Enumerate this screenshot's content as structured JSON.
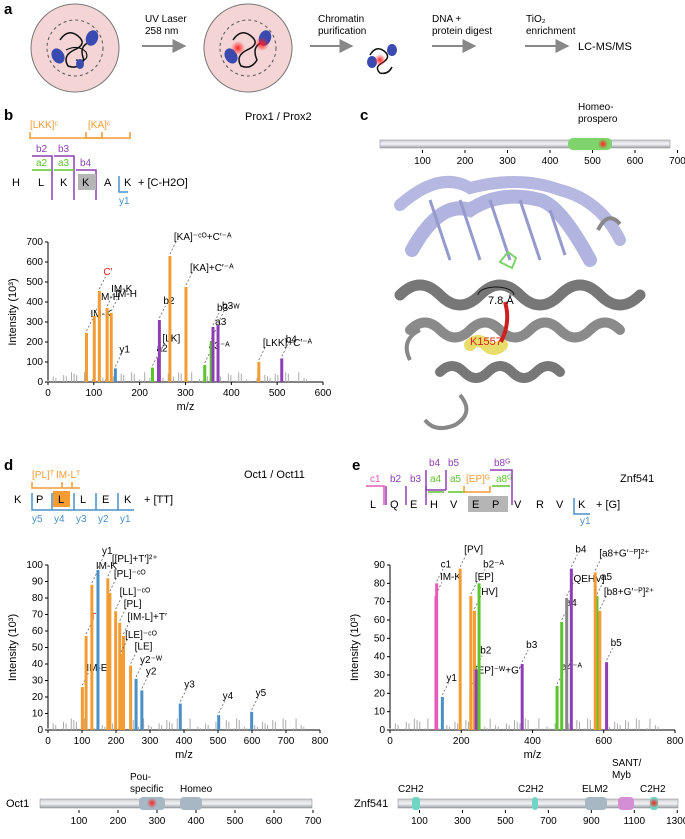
{
  "panel_labels": {
    "a": "a",
    "b": "b",
    "c": "c",
    "d": "d",
    "e": "e"
  },
  "workflow": {
    "steps": [
      "UV Laser\n258 nm",
      "Chromatin\npurification",
      "DNA +\nprotein digest",
      "TiO₂\nenrichment",
      "LC-MS/MS"
    ]
  },
  "colors": {
    "orange": "#f39c34",
    "purple": "#8e3fb5",
    "green": "#5cc42c",
    "blue": "#4a90c8",
    "pink": "#e65ab8",
    "red": "#e02020",
    "grey": "#888888",
    "cell": "#f4d4d4",
    "dna": "#a9acdc"
  },
  "panel_b": {
    "title": "Prox1 / Prox2",
    "sequence": [
      "H",
      "L",
      "K",
      "K",
      "A",
      "K"
    ],
    "mod": "+ [C-H2O]",
    "frag_labels": [
      "[LKK]ᶜ",
      "[KA]ᶜ",
      "b2",
      "b3",
      "a2",
      "a3",
      "b4",
      "y1"
    ]
  },
  "panel_c": {
    "domain_label": "Homeo-\nprospero",
    "distance": "7.8 Å",
    "residue": "K1557"
  },
  "panel_d": {
    "title": "Oct1 / Oct11",
    "sequence": [
      "K",
      "P",
      "L",
      "L",
      "E",
      "K"
    ],
    "mod": "+ [TT]",
    "top_labels": [
      "[PL]ᵀ",
      "IM-Lᵀ"
    ],
    "y_labels": [
      "y5",
      "y4",
      "y3",
      "y2",
      "y1"
    ],
    "protein": "Oct1",
    "domains": [
      "Pou-\nspecific",
      "Homeo"
    ]
  },
  "panel_e": {
    "title": "Znf541",
    "sequence": [
      "L",
      "Q",
      "E",
      "H",
      "V",
      "E",
      "P",
      "V",
      "R",
      "V",
      "K"
    ],
    "mod": "+ [G]",
    "frag_labels": [
      "c1",
      "b2",
      "b3",
      "b4",
      "b5",
      "a4",
      "a5",
      "[EP]ᴳ",
      "b8ᴳ",
      "a8ᴳ",
      "y1"
    ],
    "protein": "Znf541",
    "domains": [
      "C2H2",
      "C2H2",
      "ELM2",
      "SANT/\nMyb",
      "C2H2"
    ]
  },
  "chart_data": [
    {
      "type": "bar",
      "panel": "b",
      "xlabel": "m/z",
      "ylabel": "Intensity (10³)",
      "xlim": [
        0,
        600
      ],
      "ylim": [
        0,
        700
      ],
      "xticks": [
        0,
        100,
        200,
        300,
        400,
        500,
        600
      ],
      "yticks": [
        0,
        100,
        200,
        300,
        400,
        500,
        600,
        700
      ],
      "peaks": [
        {
          "x": 84,
          "y": 245,
          "color": "orange",
          "label": "IM-K"
        },
        {
          "x": 101,
          "y": 330,
          "color": "orange",
          "label": "IM-H"
        },
        {
          "x": 112,
          "y": 455,
          "color": "orange",
          "label": "C′"
        },
        {
          "x": 129,
          "y": 370,
          "color": "orange",
          "label": "IM-K"
        },
        {
          "x": 138,
          "y": 345,
          "color": "orange",
          "label": "IM-H"
        },
        {
          "x": 147,
          "y": 68,
          "color": "blue",
          "label": "y1"
        },
        {
          "x": 228,
          "y": 72,
          "color": "green",
          "label": "a2"
        },
        {
          "x": 241,
          "y": 122,
          "color": "purple",
          "label": "[LK]"
        },
        {
          "x": 243,
          "y": 310,
          "color": "purple",
          "label": "b2"
        },
        {
          "x": 266,
          "y": 630,
          "color": "orange",
          "label": "[KA]⁻ᶜᴼ+C′⁻ᴬ"
        },
        {
          "x": 301,
          "y": 475,
          "color": "orange",
          "label": "[KA]+C′⁻ᴬ"
        },
        {
          "x": 342,
          "y": 85,
          "color": "green",
          "label": "a3⁻ᴬ"
        },
        {
          "x": 356,
          "y": 205,
          "color": "green",
          "label": "a3"
        },
        {
          "x": 360,
          "y": 275,
          "color": "purple",
          "label": "b3⁻ᵂ"
        },
        {
          "x": 371,
          "y": 285,
          "color": "purple",
          "label": "b3"
        },
        {
          "x": 460,
          "y": 100,
          "color": "orange",
          "label": "[LKK]+C′⁻ᴬ"
        },
        {
          "x": 510,
          "y": 118,
          "color": "purple",
          "label": "b4"
        }
      ]
    },
    {
      "type": "bar",
      "panel": "d",
      "xlabel": "m/z",
      "ylabel": "Intensity (10³)",
      "xlim": [
        0,
        800
      ],
      "ylim": [
        0,
        100
      ],
      "xticks": [
        0,
        100,
        200,
        300,
        400,
        500,
        600,
        700,
        800
      ],
      "yticks": [
        0,
        10,
        20,
        30,
        40,
        50,
        60,
        70,
        80,
        90,
        100
      ],
      "peaks": [
        {
          "x": 101,
          "y": 26,
          "color": "orange",
          "label": "IM-E"
        },
        {
          "x": 112,
          "y": 57,
          "color": "orange",
          "label": "T′"
        },
        {
          "x": 129,
          "y": 88,
          "color": "orange",
          "label": "IM-K"
        },
        {
          "x": 147,
          "y": 97,
          "color": "blue",
          "label": "y1"
        },
        {
          "x": 176,
          "y": 92,
          "color": "orange",
          "label": "[[PL]+T′]²⁺"
        },
        {
          "x": 182,
          "y": 83,
          "color": "orange",
          "label": "[PL]⁻ᶜᴼ"
        },
        {
          "x": 199,
          "y": 72,
          "color": "orange",
          "label": "[LL]⁻ᶜᴼ"
        },
        {
          "x": 211,
          "y": 65,
          "color": "orange",
          "label": "[PL]"
        },
        {
          "x": 222,
          "y": 57,
          "color": "orange",
          "label": "[IM-L]+T′"
        },
        {
          "x": 215,
          "y": 46,
          "color": "orange",
          "label": "[LE]⁻ᶜᴼ"
        },
        {
          "x": 243,
          "y": 39,
          "color": "orange",
          "label": "[LE]"
        },
        {
          "x": 259,
          "y": 31,
          "color": "blue",
          "label": "y2⁻ᵂ"
        },
        {
          "x": 276,
          "y": 24,
          "color": "blue",
          "label": "y2"
        },
        {
          "x": 389,
          "y": 16,
          "color": "blue",
          "label": "y3"
        },
        {
          "x": 502,
          "y": 9,
          "color": "blue",
          "label": "y4"
        },
        {
          "x": 599,
          "y": 11,
          "color": "blue",
          "label": "y5"
        }
      ],
      "protein_map": {
        "length": 800,
        "xticks": [
          100,
          200,
          300,
          400,
          500,
          600,
          700
        ]
      }
    },
    {
      "type": "bar",
      "panel": "e",
      "xlabel": "m/z",
      "ylabel": "Intensity (10³)",
      "xlim": [
        0,
        800
      ],
      "ylim": [
        0,
        90
      ],
      "xticks": [
        0,
        200,
        400,
        600,
        800
      ],
      "yticks": [
        0,
        10,
        20,
        30,
        40,
        50,
        60,
        70,
        80,
        90
      ],
      "peaks": [
        {
          "x": 129,
          "y": 73,
          "color": "pink",
          "label": "IM-K"
        },
        {
          "x": 131,
          "y": 80,
          "color": "pink",
          "label": "c1"
        },
        {
          "x": 147,
          "y": 18,
          "color": "blue",
          "label": "y1"
        },
        {
          "x": 197,
          "y": 88,
          "color": "orange",
          "label": "[PV]"
        },
        {
          "x": 227,
          "y": 22,
          "color": "orange",
          "label": "[EP]⁻ᵂ+G′"
        },
        {
          "x": 227,
          "y": 73,
          "color": "orange",
          "label": "[EP]"
        },
        {
          "x": 237,
          "y": 65,
          "color": "orange",
          "label": "[HV]"
        },
        {
          "x": 242,
          "y": 33,
          "color": "purple",
          "label": "b2"
        },
        {
          "x": 250,
          "y": 80,
          "color": "green",
          "label": "b2⁻ᴬ"
        },
        {
          "x": 371,
          "y": 36,
          "color": "purple",
          "label": "b3"
        },
        {
          "x": 469,
          "y": 24,
          "color": "green",
          "label": "a4⁻ᴬ"
        },
        {
          "x": 482,
          "y": 59,
          "color": "green",
          "label": "a4"
        },
        {
          "x": 496,
          "y": 72,
          "color": "grey",
          "label": "[QEHV]"
        },
        {
          "x": 509,
          "y": 88,
          "color": "purple",
          "label": "b4"
        },
        {
          "x": 581,
          "y": 73,
          "color": "green",
          "label": "a5"
        },
        {
          "x": 576,
          "y": 86,
          "color": "orange",
          "label": "[a8+G′⁻ᴾ]²⁺"
        },
        {
          "x": 589,
          "y": 65,
          "color": "orange",
          "label": "[b8+G′⁻ᴾ]²⁺"
        },
        {
          "x": 608,
          "y": 37,
          "color": "purple",
          "label": "b5"
        }
      ],
      "protein_map": {
        "length": 1350,
        "xticks": [
          100,
          300,
          500,
          700,
          900,
          1100,
          1300
        ]
      }
    }
  ]
}
